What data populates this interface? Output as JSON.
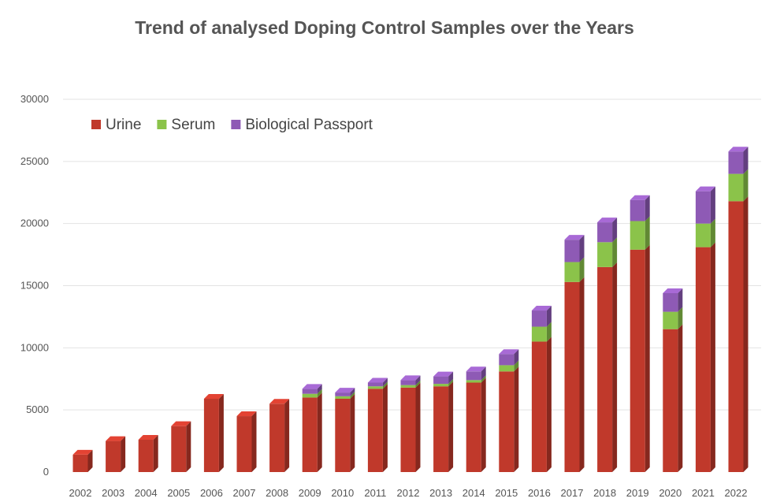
{
  "chart_data": {
    "type": "bar",
    "stacked": true,
    "title": "Trend of analysed Doping Control Samples over the Years",
    "xlabel": "",
    "ylabel": "",
    "ylim": [
      0,
      30000
    ],
    "yticks": [
      0,
      5000,
      10000,
      15000,
      20000,
      25000,
      30000
    ],
    "grid": true,
    "legend_position": "top-left",
    "categories": [
      "2002",
      "2003",
      "2004",
      "2005",
      "2006",
      "2007",
      "2008",
      "2009",
      "2010",
      "2011",
      "2012",
      "2013",
      "2014",
      "2015",
      "2016",
      "2017",
      "2018",
      "2019",
      "2020",
      "2021",
      "2022"
    ],
    "series": [
      {
        "name": "Urine",
        "color": "#c0392b",
        "values": [
          1400,
          2500,
          2600,
          3700,
          5900,
          4500,
          5500,
          6000,
          5900,
          6700,
          6800,
          6900,
          7200,
          8100,
          10500,
          15300,
          16500,
          17900,
          11500,
          18100,
          21800
        ]
      },
      {
        "name": "Serum",
        "color": "#8bc34a",
        "values": [
          0,
          0,
          0,
          0,
          0,
          0,
          0,
          300,
          200,
          200,
          200,
          200,
          200,
          500,
          1200,
          1600,
          2000,
          2300,
          1400,
          1900,
          2200
        ]
      },
      {
        "name": "Biological Passport",
        "color": "#8e5ab5",
        "values": [
          0,
          0,
          0,
          0,
          0,
          0,
          0,
          400,
          300,
          300,
          400,
          600,
          700,
          900,
          1300,
          1800,
          1600,
          1700,
          1500,
          2600,
          1800
        ]
      }
    ]
  }
}
